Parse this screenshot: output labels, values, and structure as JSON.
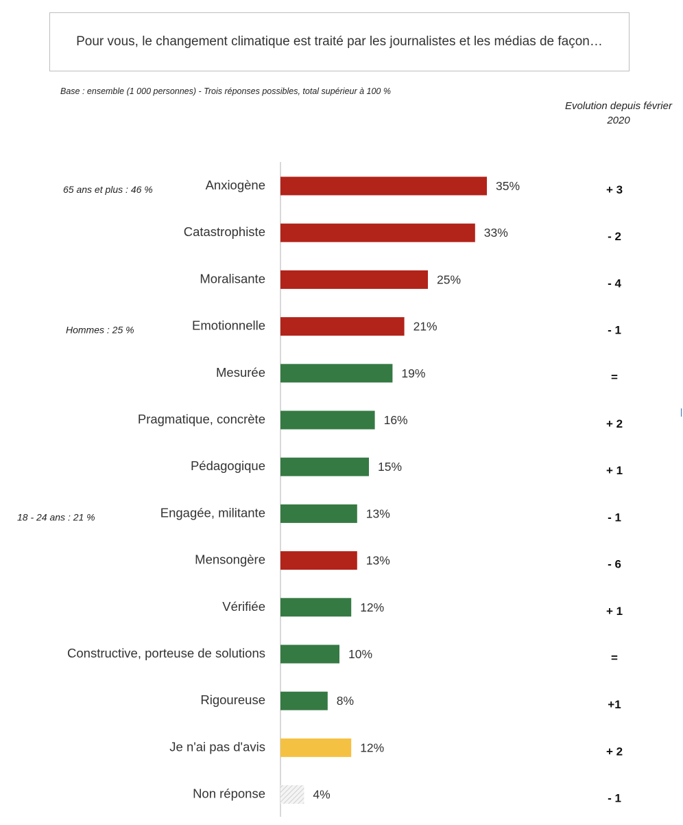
{
  "question": "Pour vous, le changement climatique est traité par les journalistes et les médias de façon…",
  "base_note": "Base : ensemble (1 000 personnes) - Trois réponses possibles, total supérieur à 100 %",
  "evolution_header": "Evolution depuis février 2020",
  "colors": {
    "negative": "#b2231a",
    "positive": "#357a43",
    "no_opinion": "#f5c143",
    "no_response": "#d9d9d9",
    "axis": "#bfbfbf"
  },
  "chart_data": {
    "type": "bar",
    "orientation": "horizontal",
    "categories": [
      "Anxiogène",
      "Catastrophiste",
      "Moralisante",
      "Emotionnelle",
      "Mesurée",
      "Pragmatique, concrète",
      "Pédagogique",
      "Engagée, militante",
      "Mensongère",
      "Vérifiée",
      "Constructive, porteuse de solutions",
      "Rigoureuse",
      "Je n'ai pas d'avis",
      "Non réponse"
    ],
    "values": [
      35,
      33,
      25,
      21,
      19,
      16,
      15,
      13,
      13,
      12,
      10,
      8,
      12,
      4
    ],
    "value_labels": [
      "35%",
      "33%",
      "25%",
      "21%",
      "19%",
      "16%",
      "15%",
      "13%",
      "13%",
      "12%",
      "10%",
      "8%",
      "12%",
      "4%"
    ],
    "bar_kinds": [
      "negative",
      "negative",
      "negative",
      "negative",
      "positive",
      "positive",
      "positive",
      "positive",
      "negative",
      "positive",
      "positive",
      "positive",
      "no_opinion",
      "no_response"
    ],
    "evolution": [
      "+ 3",
      "- 2",
      "- 4",
      "- 1",
      "=",
      "+ 2",
      "+ 1",
      "- 1",
      "- 6",
      "+ 1",
      "=",
      "+1",
      "+ 2",
      "- 1"
    ],
    "annotations": [
      {
        "category": "Anxiogène",
        "text": "65 ans et plus : 46 %"
      },
      {
        "category": "Emotionnelle",
        "text": "Hommes : 25 %"
      },
      {
        "category": "Engagée, militante",
        "text": "18  - 24 ans : 21 %"
      }
    ],
    "xlim": [
      0,
      35
    ]
  }
}
